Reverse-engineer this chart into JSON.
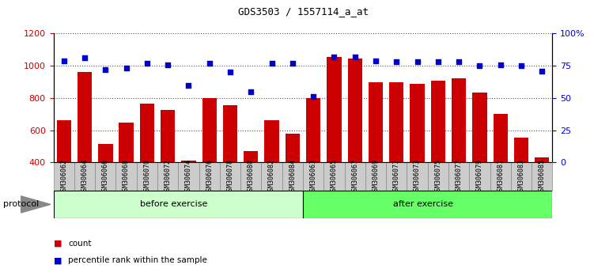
{
  "title": "GDS3503 / 1557114_a_at",
  "categories": [
    "GSM306062",
    "GSM306064",
    "GSM306066",
    "GSM306068",
    "GSM306070",
    "GSM306072",
    "GSM306074",
    "GSM306076",
    "GSM306078",
    "GSM306080",
    "GSM306082",
    "GSM306084",
    "GSM306063",
    "GSM306065",
    "GSM306067",
    "GSM306069",
    "GSM306071",
    "GSM306073",
    "GSM306075",
    "GSM306077",
    "GSM306079",
    "GSM306081",
    "GSM306083",
    "GSM306085"
  ],
  "counts": [
    660,
    960,
    515,
    645,
    765,
    725,
    410,
    800,
    755,
    470,
    660,
    580,
    800,
    1055,
    1045,
    900,
    900,
    890,
    910,
    920,
    835,
    700,
    555,
    430
  ],
  "percentiles": [
    79,
    81,
    72,
    73,
    77,
    76,
    60,
    77,
    70,
    55,
    77,
    77,
    51,
    82,
    82,
    79,
    78,
    78,
    78,
    78,
    75,
    76,
    75,
    71
  ],
  "before_count": 12,
  "after_count": 12,
  "ylim_left": [
    400,
    1200
  ],
  "ylim_right": [
    0,
    100
  ],
  "yticks_left": [
    400,
    600,
    800,
    1000,
    1200
  ],
  "yticks_right": [
    0,
    25,
    50,
    75,
    100
  ],
  "bar_color": "#cc0000",
  "dot_color": "#0000cc",
  "before_color": "#ccffcc",
  "after_color": "#66ff66",
  "protocol_label": "protocol",
  "before_label": "before exercise",
  "after_label": "after exercise",
  "legend_count": "count",
  "legend_percentile": "percentile rank within the sample",
  "bg_color": "#ffffff",
  "plot_bg": "#ffffff",
  "grid_color": "#555555",
  "xtick_bg": "#cccccc",
  "xtick_border": "#888888"
}
